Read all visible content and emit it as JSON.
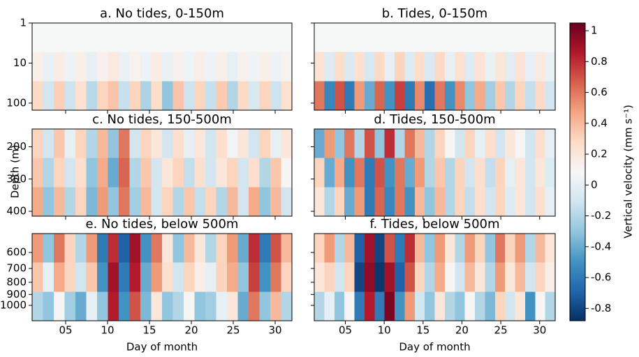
{
  "chart_data": {
    "type": "heatmap",
    "xlabel": "Day of month",
    "ylabel": "Depth (m)",
    "xlim": [
      1,
      32
    ],
    "xticks": [
      {
        "value": 5,
        "label": "05"
      },
      10,
      15,
      20,
      25,
      30
    ],
    "colormap": [
      "#053061",
      "#2166ac",
      "#4393c3",
      "#92c5de",
      "#d1e5f0",
      "#f7f7f7",
      "#fddbc7",
      "#f4a582",
      "#d6604d",
      "#b2182b",
      "#67001f"
    ],
    "colorbar": {
      "label": "Vertical velocity  (mm s⁻¹)",
      "vlim": [
        -0.88,
        1.05
      ],
      "ticks": [
        -0.8,
        -0.6,
        -0.4,
        -0.2,
        0,
        0.2,
        0.4,
        0.6,
        0.8,
        1
      ]
    },
    "panels": [
      {
        "title": "a. No tides, 0-150m",
        "yscale": "log",
        "ylim": [
          1,
          150
        ],
        "yticks": [
          1,
          10,
          100
        ],
        "values": [
          [
            0.08,
            0.08,
            0.08,
            0.08,
            0.08,
            0.08,
            0.08,
            0.08,
            0.08,
            0.08,
            0.08,
            0.08,
            0.08,
            0.08,
            0.08,
            0.08,
            0.08,
            0.08,
            0.08,
            0.08,
            0.08,
            0.08,
            0.08,
            0.08
          ],
          [
            0.14,
            0.02,
            0.16,
            0.03,
            0.14,
            0.0,
            0.13,
            0.18,
            0.02,
            0.12,
            0.03,
            0.16,
            0.02,
            0.13,
            0.04,
            0.15,
            0.03,
            0.14,
            0.0,
            0.13,
            0.04,
            0.14,
            0.03,
            0.12
          ],
          [
            0.28,
            -0.1,
            0.32,
            -0.12,
            0.24,
            -0.18,
            0.3,
            0.36,
            -0.14,
            0.3,
            -0.22,
            0.26,
            -0.3,
            0.36,
            -0.12,
            0.3,
            -0.14,
            0.34,
            -0.2,
            0.28,
            -0.08,
            0.3,
            -0.12,
            0.24
          ]
        ]
      },
      {
        "title": "b. Tides, 0-150m",
        "yscale": "log",
        "ylim": [
          1,
          150
        ],
        "yticks": [],
        "values": [
          [
            0.08,
            0.08,
            0.08,
            0.08,
            0.08,
            0.08,
            0.08,
            0.08,
            0.08,
            0.08,
            0.08,
            0.08,
            0.08,
            0.08,
            0.08,
            0.08,
            0.08,
            0.08,
            0.08,
            0.08,
            0.08,
            0.08,
            0.08,
            0.08
          ],
          [
            0.22,
            -0.04,
            0.26,
            -0.06,
            0.24,
            -0.08,
            0.28,
            0.0,
            0.3,
            -0.05,
            0.26,
            -0.06,
            0.28,
            0.0,
            0.24,
            -0.04,
            0.22,
            0.02,
            0.2,
            -0.02,
            0.22,
            0.0,
            0.18,
            0.02
          ],
          [
            0.6,
            -0.55,
            0.7,
            -0.6,
            0.5,
            -0.4,
            0.65,
            -0.5,
            0.75,
            -0.6,
            0.55,
            -0.65,
            0.6,
            -0.5,
            0.55,
            -0.3,
            0.45,
            -0.25,
            0.35,
            -0.2,
            0.3,
            -0.15,
            0.28,
            -0.1
          ]
        ]
      },
      {
        "title": "c. No tides, 150-500m",
        "yscale": "linear",
        "ylim": [
          145,
          415
        ],
        "yticks": [
          200,
          300,
          400
        ],
        "values": [
          [
            0.3,
            -0.1,
            0.35,
            0.0,
            0.3,
            -0.2,
            0.4,
            -0.3,
            0.6,
            -0.1,
            0.3,
            0.2,
            -0.1,
            0.25,
            0.0,
            0.2,
            -0.1,
            0.25,
            0.05,
            0.2,
            -0.1,
            0.3,
            0.0,
            0.2
          ],
          [
            0.35,
            -0.2,
            0.3,
            -0.1,
            0.25,
            -0.3,
            0.45,
            -0.4,
            0.65,
            -0.2,
            0.35,
            -0.1,
            0.2,
            0.3,
            -0.15,
            0.25,
            -0.1,
            0.2,
            0.3,
            -0.1,
            0.25,
            -0.2,
            0.35,
            0.1
          ],
          [
            0.45,
            -0.3,
            0.4,
            -0.2,
            0.3,
            -0.35,
            0.5,
            -0.3,
            0.6,
            -0.25,
            0.4,
            -0.1,
            0.3,
            -0.2,
            0.35,
            -0.15,
            0.3,
            -0.2,
            0.4,
            -0.1,
            0.45,
            -0.3,
            0.4,
            -0.1
          ]
        ]
      },
      {
        "title": "d. Tides, 150-500m",
        "yscale": "linear",
        "ylim": [
          145,
          415
        ],
        "yticks": [],
        "values": [
          [
            -0.4,
            0.5,
            -0.3,
            0.6,
            -0.2,
            0.7,
            -0.3,
            0.8,
            -0.2,
            0.6,
            0.4,
            -0.2,
            0.3,
            0.1,
            -0.1,
            0.3,
            0.0,
            0.25,
            -0.1,
            0.2,
            0.1,
            -0.1,
            0.25,
            0.0
          ],
          [
            0.3,
            -0.4,
            0.45,
            -0.5,
            0.6,
            -0.6,
            0.7,
            -0.5,
            0.6,
            -0.4,
            0.5,
            -0.2,
            0.35,
            -0.2,
            0.3,
            -0.1,
            0.25,
            -0.15,
            0.3,
            0.0,
            0.2,
            -0.1,
            0.2,
            -0.05
          ],
          [
            0.2,
            -0.2,
            0.3,
            -0.4,
            0.5,
            -0.6,
            0.65,
            -0.55,
            0.6,
            -0.5,
            0.4,
            -0.3,
            0.4,
            -0.2,
            0.3,
            -0.15,
            0.25,
            -0.1,
            0.3,
            -0.05,
            0.2,
            -0.1,
            0.25,
            0.0
          ]
        ]
      },
      {
        "title": "e. No tides, below 500m",
        "yscale": "log",
        "ylim": [
          500,
          1160
        ],
        "yticks": [
          600,
          700,
          800,
          900,
          1000
        ],
        "values": [
          [
            0.5,
            -0.3,
            0.6,
            0.3,
            -0.2,
            0.5,
            -0.6,
            0.8,
            -0.7,
            0.9,
            -0.5,
            0.6,
            0.2,
            -0.3,
            0.4,
            0.2,
            -0.2,
            0.3,
            0.5,
            -0.4,
            0.8,
            -0.6,
            0.7,
            0.4
          ],
          [
            0.35,
            0.0,
            0.45,
            0.3,
            -0.1,
            0.35,
            -0.5,
            0.9,
            -0.6,
            0.85,
            -0.4,
            0.5,
            0.25,
            -0.1,
            0.3,
            0.15,
            0.0,
            0.3,
            0.45,
            -0.3,
            0.75,
            -0.5,
            0.6,
            0.3
          ],
          [
            -0.2,
            -0.3,
            0.1,
            -0.25,
            -0.4,
            0.0,
            -0.3,
            0.85,
            -0.5,
            0.7,
            -0.35,
            0.2,
            -0.3,
            -0.2,
            0.1,
            -0.3,
            -0.25,
            0.0,
            0.2,
            -0.4,
            0.6,
            -0.3,
            0.4,
            -0.2
          ]
        ]
      },
      {
        "title": "f. Tides, below 500m",
        "yscale": "log",
        "ylim": [
          500,
          1160
        ],
        "yticks": [],
        "values": [
          [
            0.3,
            0.5,
            -0.2,
            0.4,
            -0.7,
            0.9,
            -0.8,
            0.7,
            -0.6,
            0.8,
            0.4,
            -0.3,
            0.5,
            0.2,
            -0.2,
            0.5,
            0.3,
            -0.3,
            0.6,
            0.3,
            0.5,
            -0.2,
            0.4,
            0.2
          ],
          [
            0.2,
            0.3,
            -0.1,
            0.3,
            -0.8,
            0.95,
            -0.85,
            0.9,
            -0.7,
            0.7,
            0.3,
            -0.2,
            0.45,
            0.1,
            -0.1,
            0.4,
            0.2,
            -0.2,
            0.5,
            0.2,
            0.4,
            -0.1,
            0.3,
            0.15
          ],
          [
            -0.2,
            0.0,
            -0.3,
            0.1,
            -0.6,
            0.85,
            -0.6,
            1.0,
            -0.5,
            0.5,
            -0.1,
            -0.3,
            0.2,
            -0.2,
            -0.3,
            0.1,
            -0.2,
            -0.35,
            0.3,
            -0.1,
            0.2,
            -0.5,
            0.1,
            -0.2
          ]
        ]
      }
    ]
  }
}
